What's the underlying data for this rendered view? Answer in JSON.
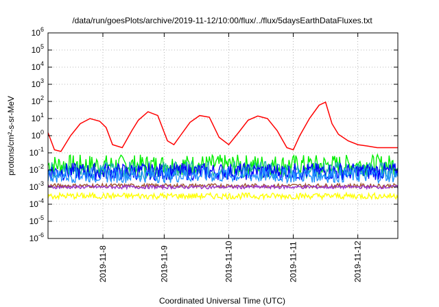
{
  "chart_data": {
    "type": "line",
    "title": "/data/run/goesPlots/archive/2019-11-12/10:00/flux/../flux/5daysEarthDataFluxes.txt",
    "xlabel": "Coordinated Universal Time (UTC)",
    "ylabel": "protons/cm²-s-sr-MeV",
    "y_scale": "log",
    "ylim": [
      1e-06,
      1000000.0
    ],
    "y_ticks": [
      {
        "base": "10",
        "exp": "-6"
      },
      {
        "base": "10",
        "exp": "-5"
      },
      {
        "base": "10",
        "exp": "-4"
      },
      {
        "base": "10",
        "exp": "-3"
      },
      {
        "base": "10",
        "exp": "-2"
      },
      {
        "base": "10",
        "exp": "-1"
      },
      {
        "base": "10",
        "exp": "0"
      },
      {
        "base": "10",
        "exp": "1"
      },
      {
        "base": "10",
        "exp": "2"
      },
      {
        "base": "10",
        "exp": "3"
      },
      {
        "base": "10",
        "exp": "4"
      },
      {
        "base": "10",
        "exp": "5"
      },
      {
        "base": "10",
        "exp": "6"
      }
    ],
    "xlim": [
      "2019-11-07T00:00",
      "2019-11-12T10:00"
    ],
    "x_ticks": [
      "2019-11-8",
      "2019-11-9",
      "2019-11-10",
      "2019-11-11",
      "2019-11-12"
    ],
    "grid": true,
    "series": [
      {
        "color": "#ff0000",
        "x": [
          0,
          0.1,
          0.2,
          0.35,
          0.5,
          0.65,
          0.8,
          0.9,
          1.0,
          1.15,
          1.3,
          1.4,
          1.55,
          1.7,
          1.85,
          1.95,
          2.05,
          2.2,
          2.35,
          2.5,
          2.65,
          2.8,
          2.95,
          3.1,
          3.25,
          3.4,
          3.55,
          3.7,
          3.8,
          3.9,
          4.05,
          4.2,
          4.3,
          4.4,
          4.5,
          4.65,
          4.8,
          4.95,
          5.1,
          5.2,
          5.3,
          5.42
        ],
        "values": [
          1.5,
          0.15,
          0.12,
          1.0,
          5,
          10,
          7,
          3,
          0.3,
          0.2,
          2,
          8,
          25,
          15,
          0.5,
          0.3,
          1,
          6,
          15,
          12,
          0.8,
          0.3,
          1.5,
          8,
          14,
          10,
          2,
          0.2,
          0.15,
          1,
          10,
          60,
          90,
          5,
          1.2,
          0.5,
          0.3,
          0.25,
          0.2,
          0.2,
          0.2,
          0.2
        ]
      },
      {
        "color": "#00ee00",
        "level": 0.02,
        "spread": 0.6
      },
      {
        "color": "#20b2aa",
        "level": 0.01,
        "spread": 0.5
      },
      {
        "color": "#0000ff",
        "level": 0.008,
        "spread": 0.5
      },
      {
        "color": "#1e90ff",
        "level": 0.005,
        "spread": 0.45
      },
      {
        "color": "#a0522d",
        "level": 0.0012,
        "spread": 0.12
      },
      {
        "color": "#9932cc",
        "level": 0.001,
        "spread": 0.1
      },
      {
        "color": "#ffff00",
        "level": 0.0003,
        "spread": 0.18
      }
    ]
  }
}
